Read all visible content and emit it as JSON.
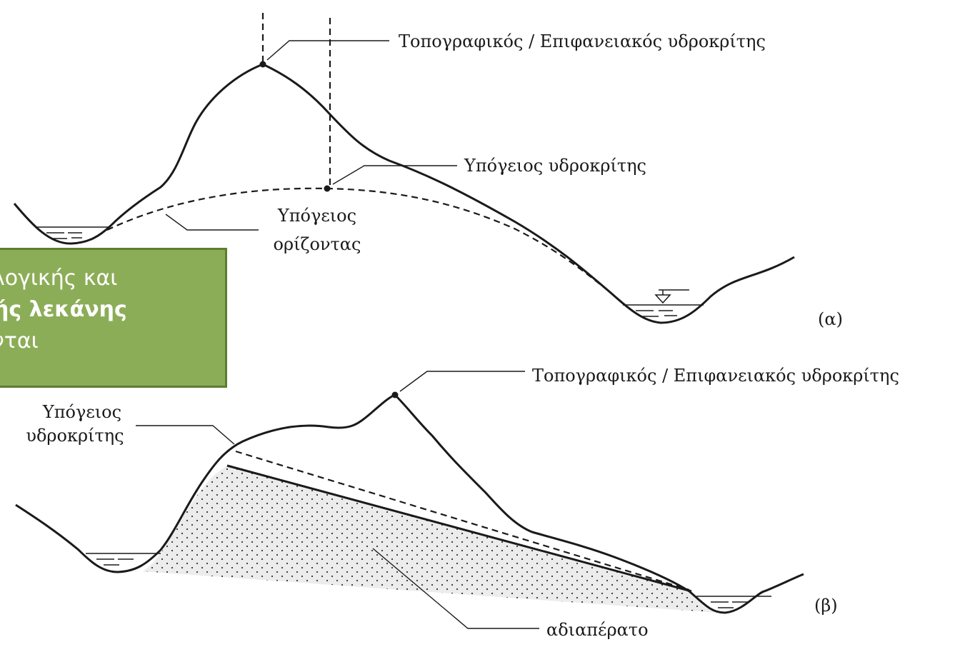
{
  "diagram_a": {
    "surface_divide_label": "Τοπογραφικός / Επιφανειακός υδροκρίτης",
    "ground_divide_label": "Υπόγειος υδροκρίτης",
    "ground_horizon_label": [
      "Υπόγειος",
      "ορίζοντας"
    ],
    "tag": "(α)"
  },
  "diagram_b": {
    "surface_divide_label": "Τοπογραφικός / Επιφανειακός υδροκρίτης",
    "ground_divide_label": [
      "Υπόγειος",
      "υδροκρίτης"
    ],
    "impermeable_label": "αδιαπέρατο",
    "tag": "(β)"
  },
  "overlay": {
    "lines": [
      "λογικής και",
      "ής λεκάνης",
      "νται"
    ]
  }
}
